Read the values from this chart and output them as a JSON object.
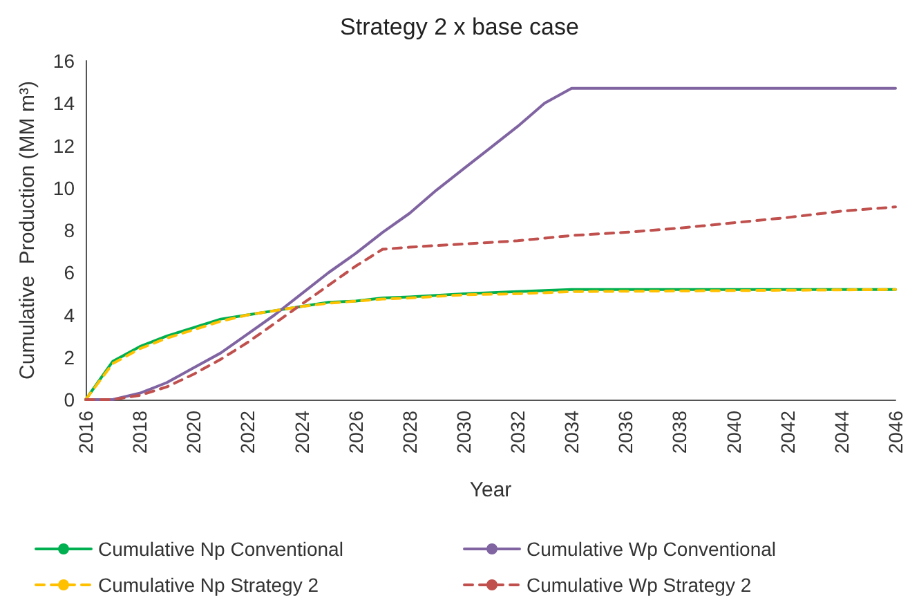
{
  "chart_data": {
    "type": "line",
    "title": "Strategy 2 x base case",
    "xlabel": "Year",
    "ylabel": "Cumulative  Production (MM m³)",
    "xlim": [
      2016,
      2046
    ],
    "xticks": [
      2016,
      2018,
      2020,
      2022,
      2024,
      2026,
      2028,
      2030,
      2032,
      2034,
      2036,
      2038,
      2040,
      2042,
      2044,
      2046
    ],
    "ylim": [
      0,
      16
    ],
    "yticks": [
      0,
      2,
      4,
      6,
      8,
      10,
      12,
      14,
      16
    ],
    "grid": false,
    "legend": "bottom",
    "marker": "none",
    "series": [
      {
        "name": "Cumulative Np Conventional",
        "color": "#00b050",
        "line_style": "solid",
        "x": [
          2016,
          2017,
          2018,
          2019,
          2020,
          2021,
          2022,
          2023,
          2024,
          2025,
          2026,
          2027,
          2028,
          2030,
          2032,
          2034,
          2046
        ],
        "values": [
          0,
          1.8,
          2.5,
          3.0,
          3.4,
          3.8,
          4.0,
          4.2,
          4.4,
          4.6,
          4.65,
          4.8,
          4.85,
          5.0,
          5.1,
          5.2,
          5.2
        ]
      },
      {
        "name": "Cumulative Wp Conventional",
        "color": "#8064a2",
        "line_style": "solid",
        "x": [
          2016,
          2017,
          2018,
          2019,
          2020,
          2021,
          2022,
          2023,
          2024,
          2025,
          2026,
          2027,
          2028,
          2029,
          2030,
          2031,
          2032,
          2033,
          2034,
          2046
        ],
        "values": [
          0,
          0,
          0.3,
          0.8,
          1.5,
          2.2,
          3.1,
          4.0,
          5.0,
          6.0,
          6.9,
          7.9,
          8.8,
          9.9,
          10.9,
          11.9,
          12.9,
          14.0,
          14.7,
          14.7
        ]
      },
      {
        "name": "Cumulative Np Strategy 2",
        "color": "#ffc000",
        "line_style": "dashed",
        "x": [
          2016,
          2017,
          2018,
          2019,
          2020,
          2021,
          2022,
          2023,
          2024,
          2025,
          2026,
          2027,
          2028,
          2030,
          2032,
          2034,
          2046
        ],
        "values": [
          0,
          1.7,
          2.4,
          2.9,
          3.3,
          3.7,
          4.0,
          4.2,
          4.4,
          4.55,
          4.65,
          4.75,
          4.8,
          4.95,
          5.0,
          5.1,
          5.2
        ]
      },
      {
        "name": "Cumulative Wp Strategy 2",
        "color": "#c0504d",
        "line_style": "dashed",
        "x": [
          2016,
          2017,
          2018,
          2019,
          2020,
          2021,
          2022,
          2023,
          2024,
          2025,
          2026,
          2027,
          2028,
          2030,
          2032,
          2034,
          2036,
          2038,
          2040,
          2042,
          2044,
          2046
        ],
        "values": [
          0,
          0,
          0.2,
          0.6,
          1.2,
          1.9,
          2.7,
          3.6,
          4.5,
          5.4,
          6.3,
          7.1,
          7.2,
          7.35,
          7.5,
          7.75,
          7.9,
          8.1,
          8.35,
          8.6,
          8.9,
          9.1
        ]
      }
    ]
  }
}
